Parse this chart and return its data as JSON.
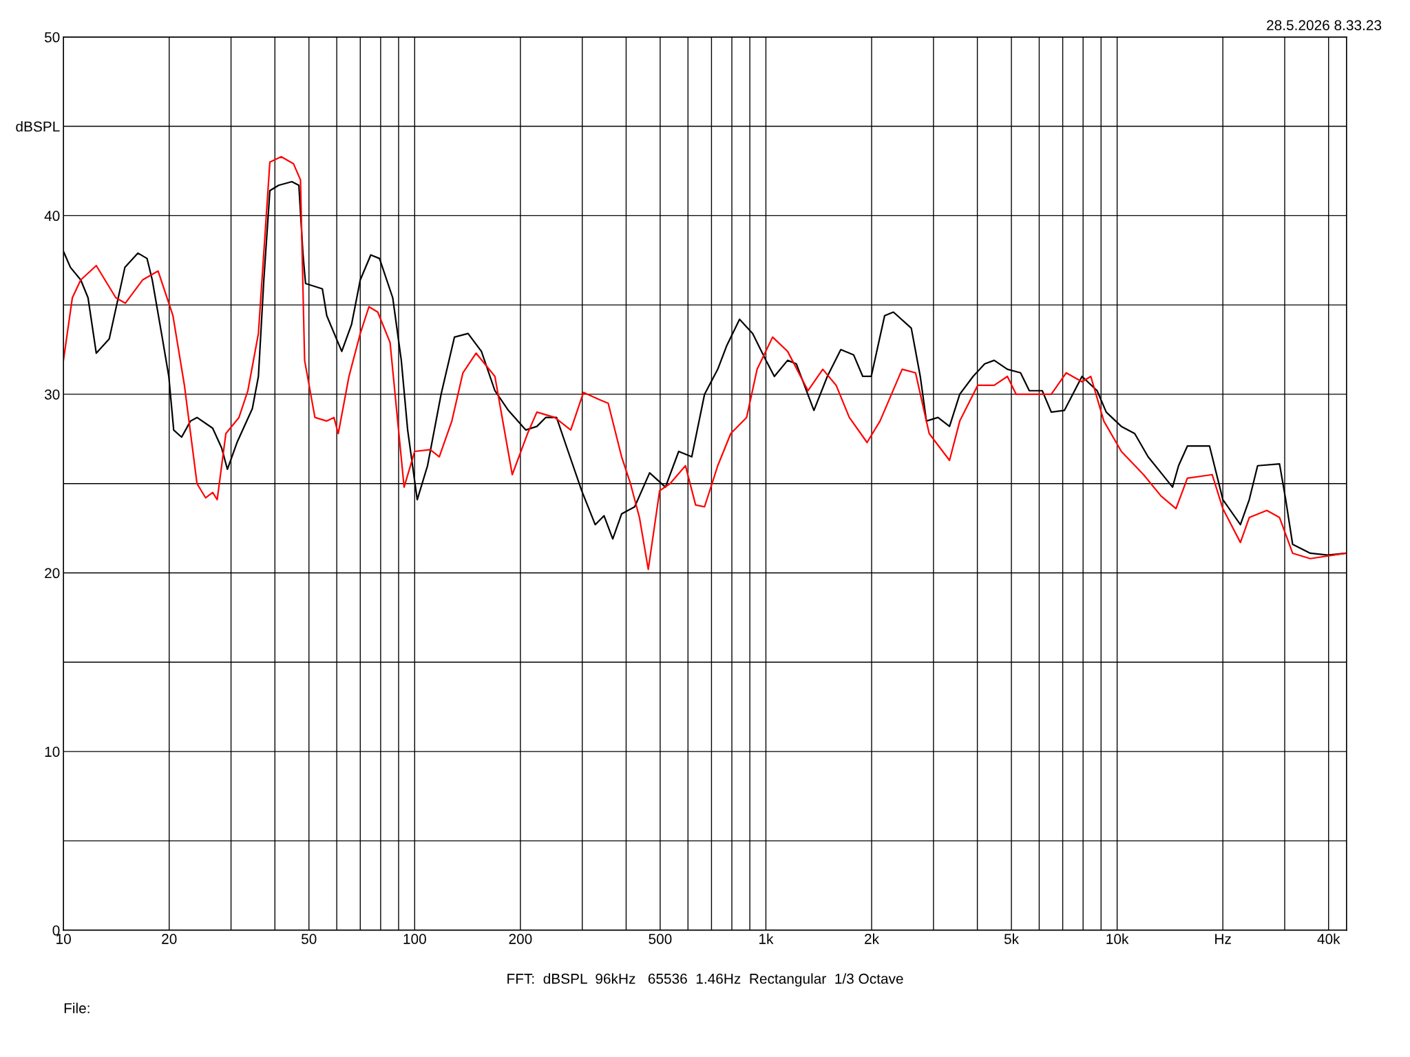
{
  "chart_data": {
    "type": "line",
    "log": "x",
    "grid": true,
    "marker": "none",
    "line_style": "solid",
    "xlim": [
      10,
      45000
    ],
    "ylim": [
      0,
      50
    ],
    "xticks": [
      10,
      20,
      {
        "value": 30,
        "label": null
      },
      {
        "value": 40,
        "label": null
      },
      50,
      {
        "value": 60,
        "label": null
      },
      {
        "value": 70,
        "label": null
      },
      {
        "value": 80,
        "label": null
      },
      {
        "value": 90,
        "label": null
      },
      100,
      200,
      {
        "value": 300,
        "label": null
      },
      {
        "value": 400,
        "label": null
      },
      500,
      {
        "value": 600,
        "label": null
      },
      {
        "value": 700,
        "label": null
      },
      {
        "value": 800,
        "label": null
      },
      {
        "value": 900,
        "label": null
      },
      {
        "value": 1000,
        "label": "1k"
      },
      {
        "value": 2000,
        "label": "2k"
      },
      {
        "value": 3000,
        "label": null
      },
      {
        "value": 4000,
        "label": null
      },
      {
        "value": 5000,
        "label": "5k"
      },
      {
        "value": 6000,
        "label": null
      },
      {
        "value": 7000,
        "label": null
      },
      {
        "value": 8000,
        "label": null
      },
      {
        "value": 9000,
        "label": null
      },
      {
        "value": 10000,
        "label": "10k"
      },
      {
        "value": 20000,
        "label": "Hz"
      },
      {
        "value": 30000,
        "label": null
      },
      {
        "value": 40000,
        "label": "40k"
      }
    ],
    "yticks": [
      0,
      {
        "value": 5,
        "label": null
      },
      10,
      {
        "value": 15,
        "label": null
      },
      20,
      {
        "value": 25,
        "label": null
      },
      30,
      {
        "value": 35,
        "label": null
      },
      40,
      {
        "value": 45,
        "label": "dBSPL"
      },
      50
    ],
    "annotations": [
      "28.5.2026 8.33.23",
      "FFT:  dBSPL  96kHz   65536  1.46Hz  Rectangular  1/3 Octave",
      "File:"
    ],
    "series": [
      {
        "color": "#000000",
        "x": [
          10,
          10.47,
          11.2,
          11.75,
          12.4,
          13.5,
          14.96,
          16.3,
          17.3,
          17.9,
          19.1,
          19.95,
          20.6,
          21.7,
          23.0,
          24.0,
          26.6,
          28.2,
          29.3,
          31.2,
          34.5,
          35.9,
          37.2,
          38.7,
          41.0,
          44.7,
          46.8,
          48.1,
          48.9,
          54.6,
          56.2,
          59.6,
          62.0,
          66.1,
          70.0,
          75.0,
          79.4,
          86.6,
          91.6,
          95.5,
          101.7,
          108.8,
          118.9,
          129.8,
          141.9,
          154.9,
          169.2,
          184.8,
          207.1,
          222.8,
          236.1,
          253.5,
          273.5,
          298.9,
          326.6,
          346.0,
          366.4,
          388.3,
          423.0,
          466.6,
          517.6,
          564.5,
          615.1,
          668.8,
          729.3,
          772.8,
          841.4,
          917.0,
          1000,
          1057,
          1153,
          1221,
          1370,
          1496,
          1634,
          1778,
          1887,
          1995,
          2178,
          2307,
          2594,
          2751,
          2864,
          3090,
          3333,
          3564,
          3890,
          4197,
          4467,
          4870,
          5309,
          5623,
          6121,
          6494,
          7079,
          7943,
          8770,
          9311,
          10280,
          11220,
          12250,
          13340,
          14380,
          14960,
          15850,
          18330,
          20000,
          22440,
          23780,
          25120,
          29000,
          30200,
          31600,
          35480,
          39810,
          44670
        ],
        "values": [
          38.0,
          37.1,
          36.4,
          35.4,
          32.3,
          33.1,
          37.1,
          37.9,
          37.6,
          36.4,
          33.2,
          31.0,
          28.0,
          27.6,
          28.5,
          28.7,
          28.1,
          27.0,
          25.8,
          27.3,
          29.2,
          31.0,
          36.4,
          41.4,
          41.7,
          41.9,
          41.7,
          37.8,
          36.2,
          35.9,
          34.4,
          33.2,
          32.4,
          33.9,
          36.4,
          37.8,
          37.6,
          35.4,
          31.9,
          28.0,
          24.1,
          26.0,
          30.0,
          33.2,
          33.4,
          32.4,
          30.2,
          29.1,
          28.0,
          28.2,
          28.7,
          28.7,
          26.8,
          24.6,
          22.7,
          23.2,
          21.9,
          23.3,
          23.7,
          25.6,
          24.8,
          26.8,
          26.5,
          30.0,
          31.4,
          32.7,
          34.2,
          33.4,
          31.9,
          31.0,
          31.9,
          31.7,
          29.1,
          31.0,
          32.5,
          32.2,
          31.0,
          31.0,
          34.4,
          34.6,
          33.7,
          31.0,
          28.5,
          28.7,
          28.2,
          30.0,
          31.0,
          31.7,
          31.9,
          31.4,
          31.2,
          30.2,
          30.2,
          29.0,
          29.1,
          31.0,
          30.2,
          29.0,
          28.2,
          27.8,
          26.5,
          25.6,
          24.8,
          26.0,
          27.1,
          27.1,
          24.1,
          22.7,
          24.1,
          26.0,
          26.1,
          24.1,
          21.6,
          21.1,
          21.0,
          21.1
        ]
      },
      {
        "color": "#ff0000",
        "x": [
          10,
          10.6,
          11.2,
          12.4,
          14.1,
          15.0,
          16.8,
          18.6,
          20.5,
          22.1,
          24.0,
          25.4,
          26.6,
          27.4,
          29.0,
          31.6,
          33.5,
          35.9,
          38.7,
          41.7,
          45.2,
          47.3,
          48.6,
          52.0,
          56.2,
          58.9,
          60.6,
          65.0,
          70.0,
          74.1,
          78.5,
          85.1,
          93.3,
          100,
          110.7,
          117.5,
          127.6,
          137.2,
          149.6,
          169.2,
          189.6,
          209.6,
          222.8,
          250.6,
          278.2,
          302.3,
          335.7,
          355.6,
          388.3,
          411.5,
          436.5,
          462.5,
          498.2,
          533.6,
          590.2,
          630.9,
          668.8,
          729.3,
          794.3,
          881.0,
          944.1,
          1045,
          1153,
          1318,
          1452,
          1585,
          1728,
          1941,
          2113,
          2443,
          2667,
          2917,
          3333,
          3564,
          4009,
          4467,
          4870,
          5158,
          5781,
          6494,
          7161,
          7943,
          8414,
          9165,
          10280,
          11890,
          13340,
          14710,
          15850,
          18650,
          20000,
          22440,
          23780,
          26680,
          29000,
          31600,
          35480,
          44670
        ],
        "values": [
          31.9,
          35.4,
          36.4,
          37.2,
          35.4,
          35.1,
          36.4,
          36.9,
          34.4,
          30.5,
          25.0,
          24.2,
          24.5,
          24.1,
          27.8,
          28.7,
          30.2,
          33.4,
          43.0,
          43.3,
          42.9,
          42.0,
          31.9,
          28.7,
          28.5,
          28.7,
          27.8,
          31.0,
          33.4,
          34.9,
          34.6,
          32.9,
          24.8,
          26.8,
          26.9,
          26.5,
          28.5,
          31.2,
          32.3,
          31.0,
          25.5,
          27.8,
          29.0,
          28.7,
          28.0,
          30.1,
          29.7,
          29.5,
          26.5,
          25.0,
          23.1,
          20.2,
          24.6,
          25.0,
          26.0,
          23.8,
          23.7,
          26.0,
          27.8,
          28.7,
          31.4,
          33.2,
          32.4,
          30.2,
          31.4,
          30.5,
          28.7,
          27.3,
          28.5,
          31.4,
          31.2,
          27.8,
          26.3,
          28.5,
          30.5,
          30.5,
          31.0,
          30.0,
          30.0,
          30.0,
          31.2,
          30.7,
          31.0,
          28.5,
          26.8,
          25.5,
          24.3,
          23.6,
          25.3,
          25.5,
          23.6,
          21.7,
          23.1,
          23.5,
          23.1,
          21.1,
          20.8,
          21.1
        ]
      }
    ]
  }
}
